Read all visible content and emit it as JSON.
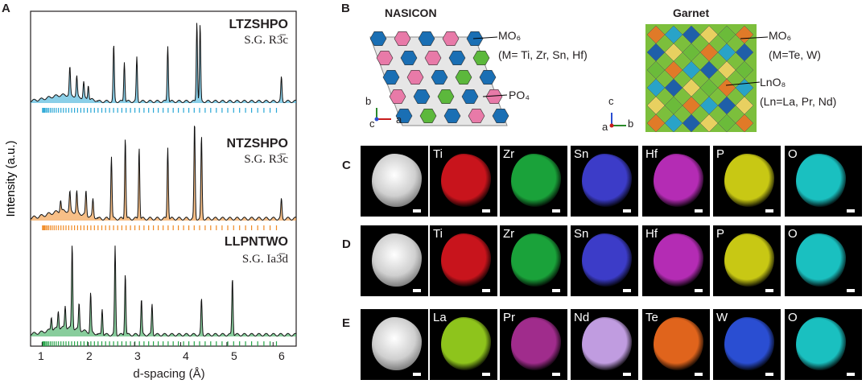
{
  "panels": {
    "A": {
      "letter": "A",
      "ylabel": "Intensity (a.u.)",
      "xlabel": "d-spacing (Å)",
      "xticks": [
        "1",
        "2",
        "3",
        "4",
        "5",
        "6"
      ],
      "patterns": [
        {
          "name": "LTZSHPO",
          "sg": "S.G. R3̅c",
          "color": "#2aa7d6"
        },
        {
          "name": "NTZSHPO",
          "sg": "S.G. R3̅c",
          "color": "#f08a24"
        },
        {
          "name": "LLPNTWO",
          "sg": "S.G. Ia3̅d",
          "color": "#27a44a"
        }
      ]
    },
    "B": {
      "letter": "B",
      "nasicon": {
        "title": "NASICON",
        "mo6": "MO₆",
        "mo6_note": "(M= Ti, Zr, Sn, Hf)",
        "po4": "PO₄",
        "axes": {
          "b": "b",
          "c": "c",
          "a": "a"
        }
      },
      "garnet": {
        "title": "Garnet",
        "mo6": "MO₆",
        "mo6_note": "(M=Te, W)",
        "lno8": "LnO₈",
        "lno8_note": "(Ln=La, Pr, Nd)",
        "axes": {
          "c": "c",
          "a": "a",
          "b": "b"
        }
      }
    },
    "C": {
      "letter": "C",
      "maps": [
        "",
        "Ti",
        "Zr",
        "Sn",
        "Hf",
        "P",
        "O"
      ]
    },
    "D": {
      "letter": "D",
      "maps": [
        "",
        "Ti",
        "Zr",
        "Sn",
        "Hf",
        "P",
        "O"
      ]
    },
    "E": {
      "letter": "E",
      "maps": [
        "",
        "La",
        "Pr",
        "Nd",
        "Te",
        "W",
        "O"
      ]
    }
  },
  "colors": {
    "Ti": "#c8141c",
    "Zr": "#1aa23a",
    "Sn": "#3c3cc8",
    "Hf": "#b42cb4",
    "P": "#c8c814",
    "O": "#1ac0c0",
    "La": "#8ec41c",
    "Pr": "#a02c8c",
    "Nd": "#c09ce0",
    "Te": "#e0641c",
    "W": "#2a4ed2"
  }
}
